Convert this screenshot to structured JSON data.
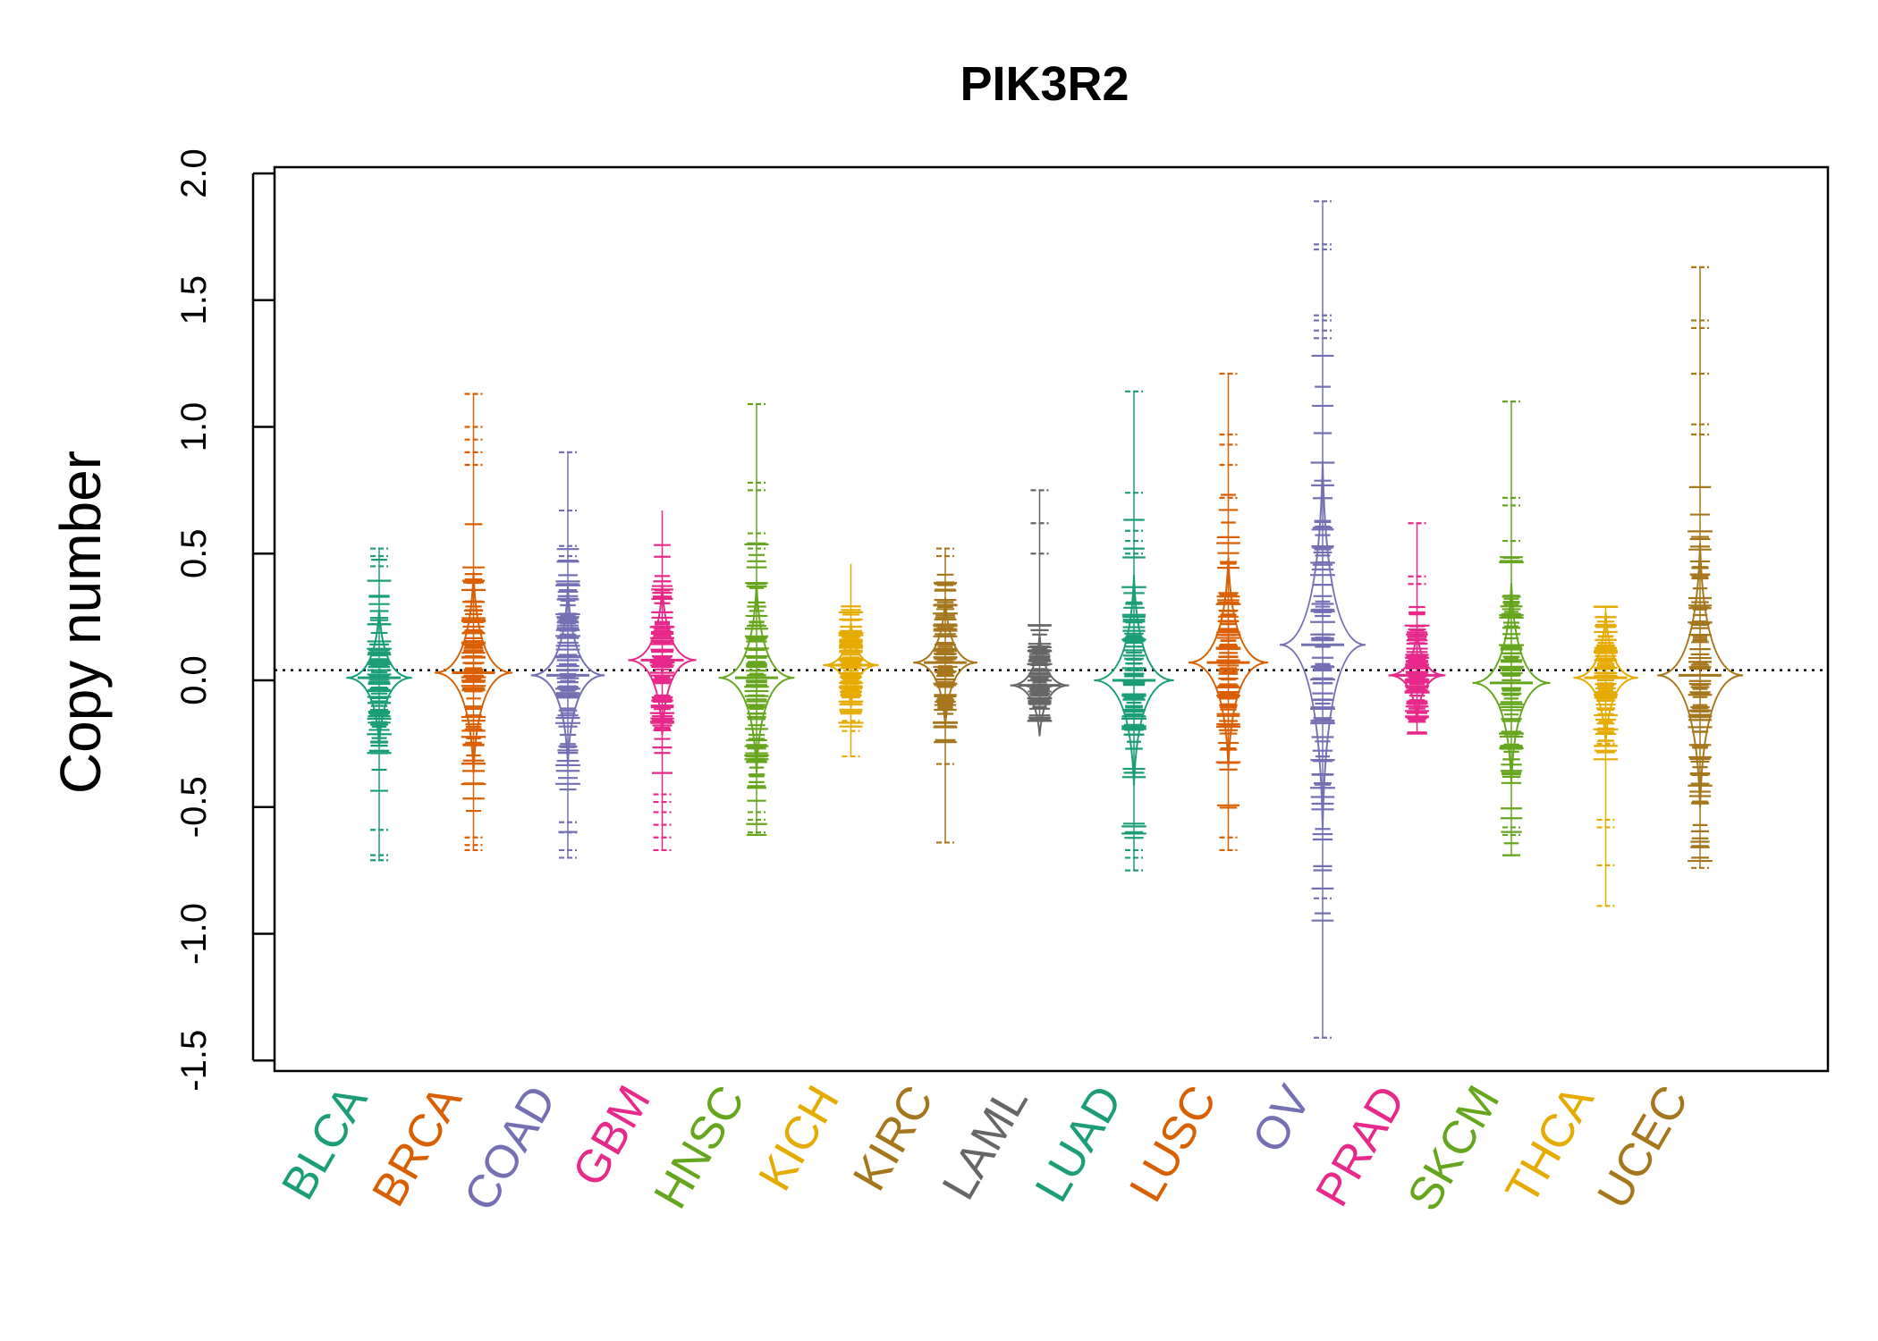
{
  "chart_data": {
    "type": "beanplot",
    "title": "PIK3R2",
    "xlabel": "",
    "ylabel": "Copy number",
    "ylim": [
      -1.5,
      2.0
    ],
    "yticks": [
      "-1.5",
      "-1.0",
      "-0.5",
      "0.0",
      "0.5",
      "1.0",
      "1.5",
      "2.0"
    ],
    "ytick_values": [
      -1.5,
      -1.0,
      -0.5,
      0.0,
      0.5,
      1.0,
      1.5,
      2.0
    ],
    "reference_line": 0.04,
    "categories": [
      "BLCA",
      "BRCA",
      "COAD",
      "GBM",
      "HNSC",
      "KICH",
      "KIRC",
      "LAML",
      "LUAD",
      "LUSC",
      "OV",
      "PRAD",
      "SKCM",
      "THCA",
      "UCEC"
    ],
    "colors": [
      "#1B9E77",
      "#D95F02",
      "#7570B3",
      "#E7298A",
      "#66A61E",
      "#E6AB02",
      "#A6761D",
      "#666666",
      "#1B9E77",
      "#D95F02",
      "#7570B3",
      "#E7298A",
      "#66A61E",
      "#E6AB02",
      "#A6761D"
    ],
    "series": [
      {
        "name": "BLCA",
        "min": -0.71,
        "max": 0.52,
        "mean": 0.01,
        "median": 0.01,
        "outliers": [
          0.52,
          0.49,
          0.45,
          -0.59,
          -0.69,
          -0.71
        ]
      },
      {
        "name": "BRCA",
        "min": -0.67,
        "max": 1.13,
        "mean": 0.03,
        "median": 0.03,
        "outliers": [
          1.13,
          1.0,
          0.95,
          0.9,
          0.85,
          -0.62,
          -0.65,
          -0.67
        ]
      },
      {
        "name": "COAD",
        "min": -0.7,
        "max": 0.9,
        "mean": 0.02,
        "median": 0.02,
        "outliers": [
          0.9,
          0.67,
          0.53,
          0.49,
          -0.56,
          -0.6,
          -0.67,
          -0.7
        ]
      },
      {
        "name": "GBM",
        "min": -0.67,
        "max": 0.67,
        "mean": 0.08,
        "median": 0.08,
        "outliers": [
          -0.45,
          -0.48,
          -0.52,
          -0.57,
          -0.62,
          -0.67
        ]
      },
      {
        "name": "HNSC",
        "min": -0.61,
        "max": 1.09,
        "mean": 0.01,
        "median": 0.01,
        "outliers": [
          1.09,
          0.78,
          0.75,
          0.58,
          0.52,
          -0.52,
          -0.55,
          -0.6,
          -0.61
        ]
      },
      {
        "name": "KICH",
        "min": -0.3,
        "max": 0.46,
        "mean": 0.06,
        "median": 0.06,
        "outliers": [
          -0.16,
          -0.2,
          -0.3
        ]
      },
      {
        "name": "KIRC",
        "min": -0.64,
        "max": 0.52,
        "mean": 0.07,
        "median": 0.07,
        "outliers": [
          0.52,
          0.49,
          -0.33,
          -0.64
        ]
      },
      {
        "name": "LAML",
        "min": -0.16,
        "max": 0.75,
        "mean": -0.02,
        "median": -0.02,
        "outliers": [
          0.75,
          0.62,
          0.5
        ]
      },
      {
        "name": "LUAD",
        "min": -0.75,
        "max": 1.14,
        "mean": 0.0,
        "median": 0.0,
        "outliers": [
          1.14,
          0.74,
          0.59,
          0.55,
          0.52,
          0.5,
          -0.67,
          -0.7,
          -0.75
        ]
      },
      {
        "name": "LUSC",
        "min": -0.67,
        "max": 1.21,
        "mean": 0.07,
        "median": 0.07,
        "outliers": [
          1.21,
          0.97,
          0.93,
          0.85,
          0.72,
          -0.62,
          -0.67
        ]
      },
      {
        "name": "OV",
        "min": -1.41,
        "max": 1.89,
        "mean": 0.14,
        "median": 0.14,
        "outliers": [
          1.89,
          1.72,
          1.7,
          1.44,
          1.42,
          1.38,
          1.35,
          -0.86,
          -1.41
        ]
      },
      {
        "name": "PRAD",
        "min": -0.21,
        "max": 0.62,
        "mean": 0.02,
        "median": 0.02,
        "outliers": [
          0.62,
          0.41,
          0.38
        ]
      },
      {
        "name": "SKCM",
        "min": -0.69,
        "max": 1.1,
        "mean": -0.01,
        "median": -0.01,
        "outliers": [
          1.1,
          0.72,
          0.69,
          0.55,
          -0.58,
          -0.61,
          -0.69
        ]
      },
      {
        "name": "THCA",
        "min": -0.89,
        "max": 0.29,
        "mean": 0.01,
        "median": 0.01,
        "outliers": [
          0.29,
          0.25,
          -0.25,
          -0.55,
          -0.58,
          -0.73,
          -0.89
        ]
      },
      {
        "name": "UCEC",
        "min": -0.74,
        "max": 1.63,
        "mean": 0.02,
        "median": 0.02,
        "outliers": [
          1.63,
          1.42,
          1.39,
          1.21,
          1.01,
          0.97,
          -0.7,
          -0.74
        ]
      }
    ]
  }
}
